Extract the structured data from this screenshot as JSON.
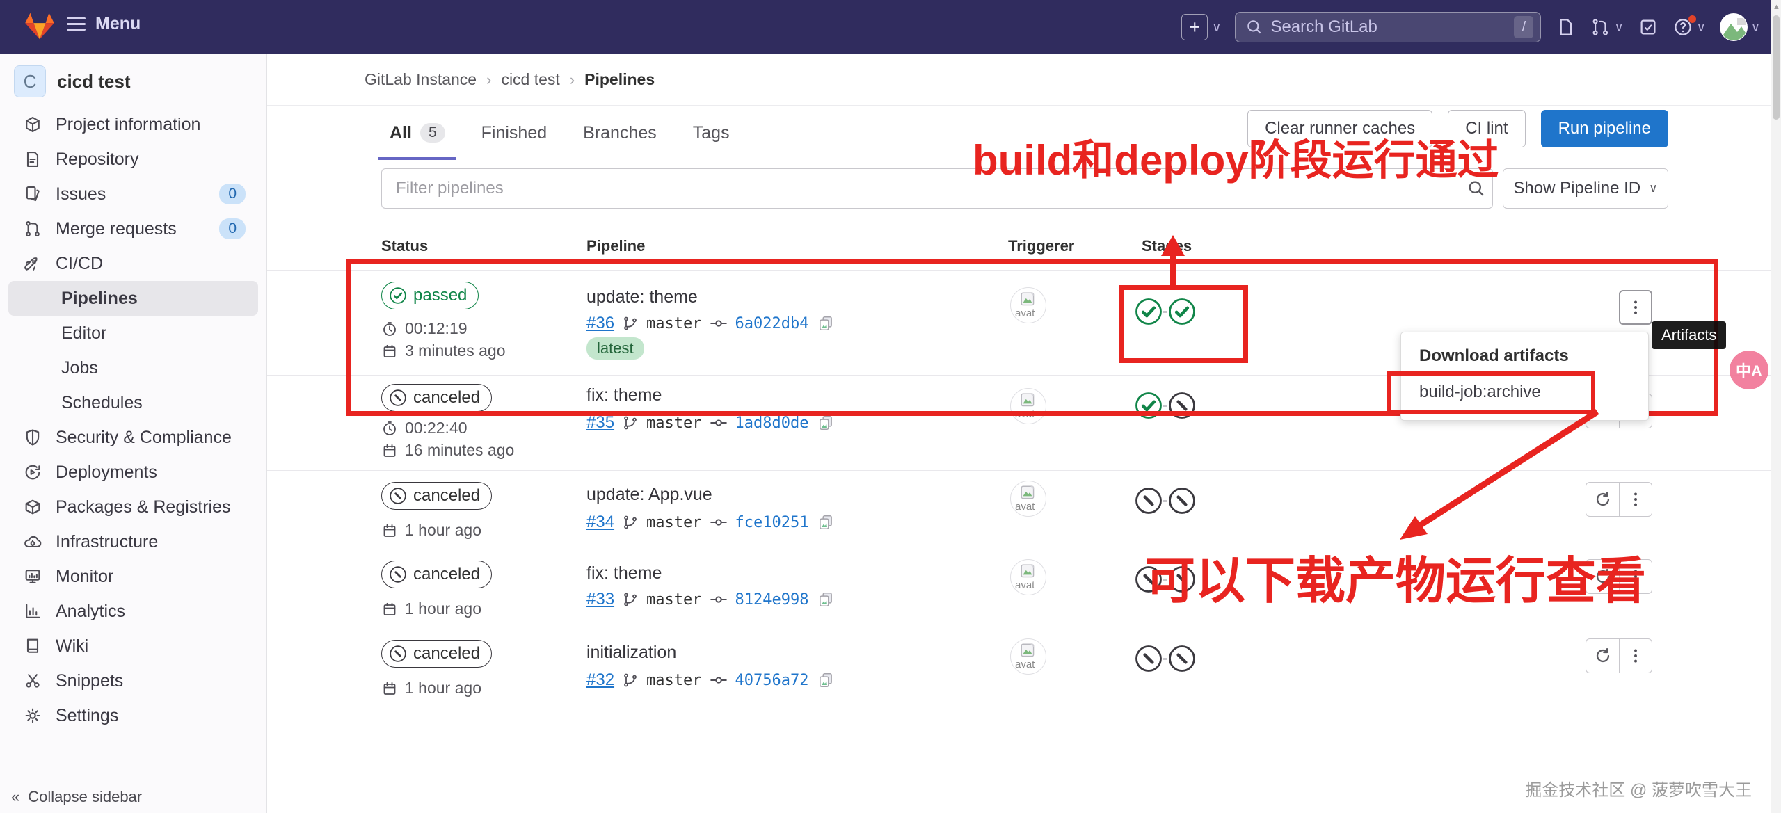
{
  "navbar": {
    "menu_label": "Menu",
    "search_placeholder": "Search GitLab",
    "search_shortcut": "/"
  },
  "sidebar": {
    "project_initial": "C",
    "project_name": "cicd test",
    "items": [
      {
        "label": "Project information",
        "icon": "info"
      },
      {
        "label": "Repository",
        "icon": "doc"
      },
      {
        "label": "Issues",
        "icon": "issues",
        "badge": "0"
      },
      {
        "label": "Merge requests",
        "icon": "merge",
        "badge": "0"
      },
      {
        "label": "CI/CD",
        "icon": "rocket"
      },
      {
        "label": "Pipelines",
        "sub": true,
        "active": true
      },
      {
        "label": "Editor",
        "sub": true
      },
      {
        "label": "Jobs",
        "sub": true
      },
      {
        "label": "Schedules",
        "sub": true
      },
      {
        "label": "Security & Compliance",
        "icon": "shield"
      },
      {
        "label": "Deployments",
        "icon": "deploy"
      },
      {
        "label": "Packages & Registries",
        "icon": "package"
      },
      {
        "label": "Infrastructure",
        "icon": "cloud"
      },
      {
        "label": "Monitor",
        "icon": "monitor"
      },
      {
        "label": "Analytics",
        "icon": "chart"
      },
      {
        "label": "Wiki",
        "icon": "book"
      },
      {
        "label": "Snippets",
        "icon": "scissors"
      },
      {
        "label": "Settings",
        "icon": "gear"
      }
    ],
    "collapse_label": "Collapse sidebar"
  },
  "breadcrumb": {
    "items": [
      "GitLab Instance",
      "cicd test",
      "Pipelines"
    ]
  },
  "tabs": [
    {
      "label": "All",
      "count": "5",
      "active": true
    },
    {
      "label": "Finished"
    },
    {
      "label": "Branches"
    },
    {
      "label": "Tags"
    }
  ],
  "actions": {
    "clear_caches": "Clear runner caches",
    "ci_lint": "CI lint",
    "run_pipeline": "Run pipeline"
  },
  "filter": {
    "placeholder": "Filter pipelines",
    "show_pipeline_id": "Show Pipeline ID"
  },
  "table": {
    "headers": [
      "Status",
      "Pipeline",
      "Triggerer",
      "Stages"
    ],
    "rows": [
      {
        "status": "passed",
        "duration": "00:12:19",
        "age": "3 minutes ago",
        "title": "update: theme",
        "id": "#36",
        "branch": "master",
        "commit": "6a022db4",
        "latest": "latest",
        "stages": [
          "passed",
          "passed"
        ],
        "actions": [
          "kebab"
        ]
      },
      {
        "status": "canceled",
        "duration": "00:22:40",
        "age": "16 minutes ago",
        "title": "fix: theme",
        "id": "#35",
        "branch": "master",
        "commit": "1ad8d0de",
        "stages": [
          "passed",
          "canceled"
        ],
        "actions": [
          "retry",
          "kebab"
        ]
      },
      {
        "status": "canceled",
        "age": "1 hour ago",
        "title": "update: App.vue",
        "id": "#34",
        "branch": "master",
        "commit": "fce10251",
        "stages": [
          "canceled",
          "canceled"
        ],
        "actions": [
          "retry",
          "kebab"
        ]
      },
      {
        "status": "canceled",
        "age": "1 hour ago",
        "title": "fix: theme",
        "id": "#33",
        "branch": "master",
        "commit": "8124e998",
        "stages": [
          "canceled",
          "canceled"
        ],
        "actions": [
          "retry",
          "kebab"
        ]
      },
      {
        "status": "canceled",
        "age": "1 hour ago",
        "title": "initialization",
        "id": "#32",
        "branch": "master",
        "commit": "40756a72",
        "stages": [
          "canceled",
          "canceled"
        ],
        "actions": [
          "retry",
          "kebab"
        ]
      }
    ],
    "avatar_alt": "avat"
  },
  "artifacts_dropdown": {
    "header": "Download artifacts",
    "items": [
      "build-job:archive"
    ]
  },
  "tooltip": {
    "label": "Artifacts"
  },
  "annotations": {
    "top_text": "build和deploy阶段运行通过",
    "bottom_text": "可以下载产物运行查看",
    "color": "#e82420"
  },
  "watermark": "掘金技术社区 @ 菠萝吹雪大王",
  "translate_button": {
    "label": "中A"
  },
  "status_colors": {
    "passed": "#108548",
    "canceled": "#3a383e",
    "latest_bg": "#c3e6cd",
    "latest_fg": "#24663b"
  }
}
